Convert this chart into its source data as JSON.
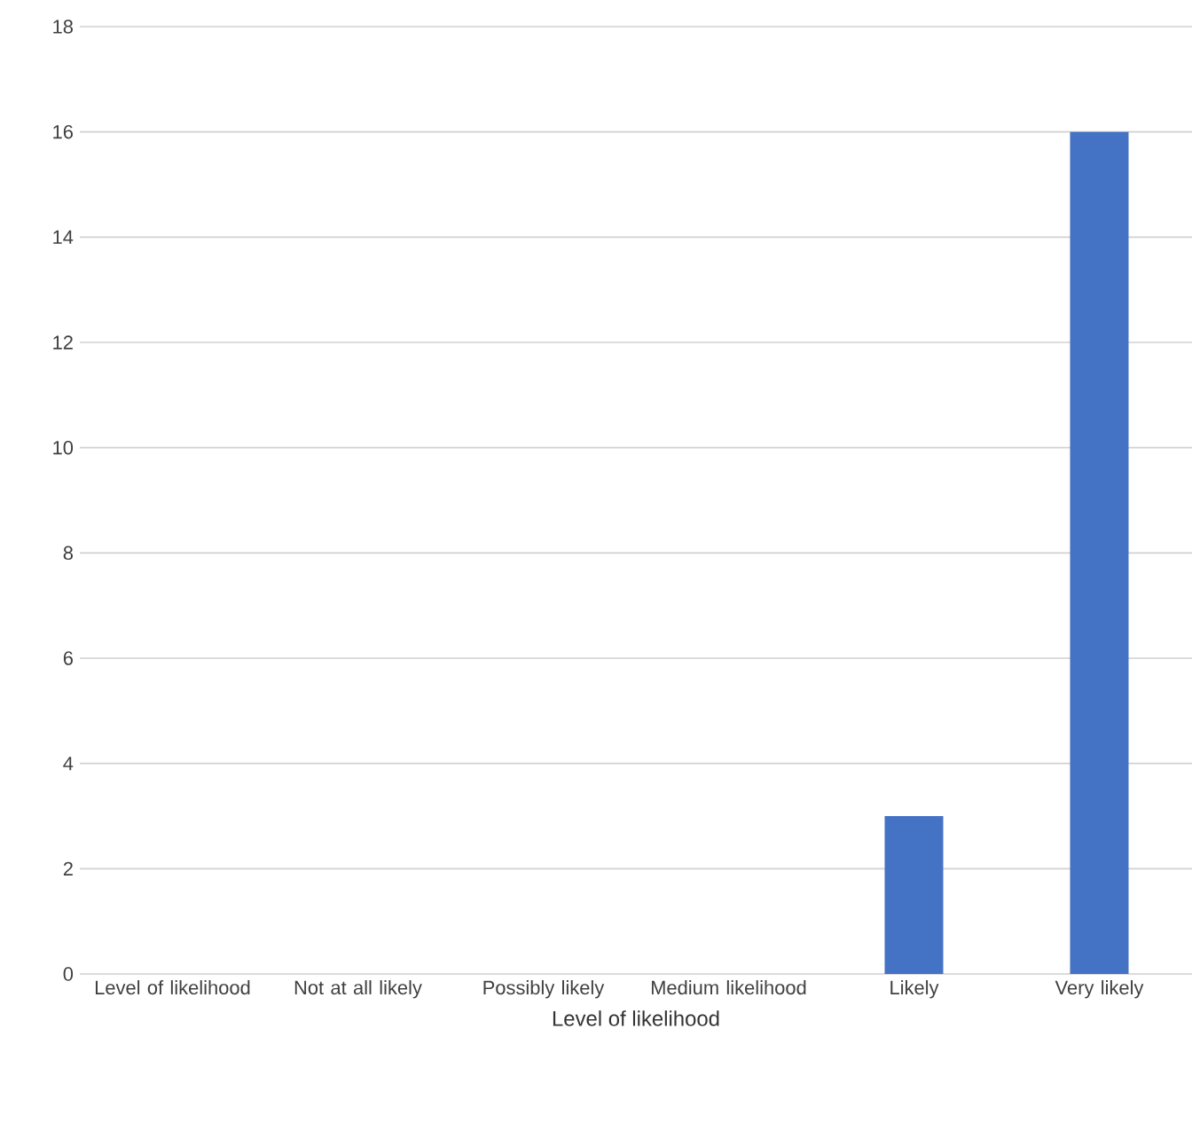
{
  "chart_data": {
    "type": "bar",
    "xlabel": "Level of likelihood",
    "categories": [
      "Level of likelihood",
      "Not at all likely",
      "Possibly likely",
      "Medium likelihood",
      "Likely",
      "Very likely"
    ],
    "values": [
      0,
      0,
      0,
      0,
      3,
      16
    ],
    "color": "#4472c4",
    "ylim": [
      0,
      18
    ],
    "yticks": [
      0,
      2,
      4,
      6,
      8,
      10,
      12,
      14,
      16,
      18
    ],
    "grid": "y"
  }
}
